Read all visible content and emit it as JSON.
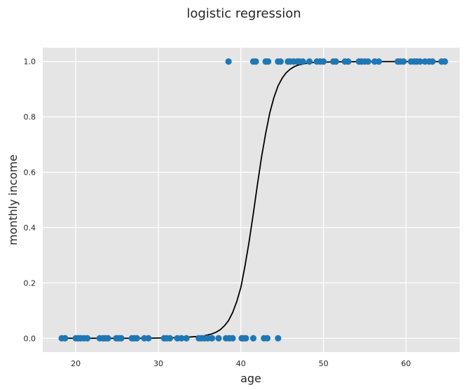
{
  "chart_data": {
    "type": "scatter",
    "title": "logistic regression",
    "xlabel": "age",
    "ylabel": "monthly income",
    "xlim": [
      16,
      66.5
    ],
    "ylim": [
      -0.05,
      1.05
    ],
    "xticks": [
      20,
      30,
      40,
      50,
      60
    ],
    "yticks": [
      0.0,
      0.2,
      0.4,
      0.6,
      0.8,
      1.0
    ],
    "grid": true,
    "background_color": "#e5e5e5",
    "grid_color": "#ffffff",
    "point_color": "#1f77b4",
    "line_color": "#000000",
    "series": [
      {
        "type": "scatter",
        "points": [
          [
            18.3,
            0
          ],
          [
            18.7,
            0
          ],
          [
            20.0,
            0
          ],
          [
            20.3,
            0
          ],
          [
            20.6,
            0
          ],
          [
            21.0,
            0
          ],
          [
            21.4,
            0
          ],
          [
            22.9,
            0
          ],
          [
            23.3,
            0
          ],
          [
            23.6,
            0
          ],
          [
            23.9,
            0
          ],
          [
            24.9,
            0
          ],
          [
            25.2,
            0
          ],
          [
            25.5,
            0
          ],
          [
            26.8,
            0
          ],
          [
            27.1,
            0
          ],
          [
            27.4,
            0
          ],
          [
            28.3,
            0
          ],
          [
            28.8,
            0
          ],
          [
            30.7,
            0
          ],
          [
            31.0,
            0
          ],
          [
            31.4,
            0
          ],
          [
            32.3,
            0
          ],
          [
            32.8,
            0
          ],
          [
            33.4,
            0
          ],
          [
            34.9,
            0
          ],
          [
            35.2,
            0
          ],
          [
            35.6,
            0
          ],
          [
            36.0,
            0
          ],
          [
            36.5,
            0
          ],
          [
            37.3,
            0
          ],
          [
            38.2,
            0
          ],
          [
            38.6,
            0
          ],
          [
            39.0,
            0
          ],
          [
            40.1,
            0
          ],
          [
            40.3,
            0
          ],
          [
            40.6,
            0
          ],
          [
            41.5,
            0
          ],
          [
            42.8,
            0
          ],
          [
            43.2,
            0
          ],
          [
            44.5,
            0
          ],
          [
            38.5,
            1
          ],
          [
            41.5,
            1
          ],
          [
            41.8,
            1
          ],
          [
            43.0,
            1
          ],
          [
            43.3,
            1
          ],
          [
            44.5,
            1
          ],
          [
            44.8,
            1
          ],
          [
            45.7,
            1
          ],
          [
            46.0,
            1
          ],
          [
            46.4,
            1
          ],
          [
            46.8,
            1
          ],
          [
            47.1,
            1
          ],
          [
            47.5,
            1
          ],
          [
            48.3,
            1
          ],
          [
            49.2,
            1
          ],
          [
            49.6,
            1
          ],
          [
            50.0,
            1
          ],
          [
            51.2,
            1
          ],
          [
            51.5,
            1
          ],
          [
            52.6,
            1
          ],
          [
            53.0,
            1
          ],
          [
            54.3,
            1
          ],
          [
            54.6,
            1
          ],
          [
            55.0,
            1
          ],
          [
            55.4,
            1
          ],
          [
            56.2,
            1
          ],
          [
            56.7,
            1
          ],
          [
            59.0,
            1
          ],
          [
            59.3,
            1
          ],
          [
            59.7,
            1
          ],
          [
            60.6,
            1
          ],
          [
            61.0,
            1
          ],
          [
            61.3,
            1
          ],
          [
            61.7,
            1
          ],
          [
            62.3,
            1
          ],
          [
            62.8,
            1
          ],
          [
            63.2,
            1
          ],
          [
            64.3,
            1
          ],
          [
            64.7,
            1
          ]
        ]
      },
      {
        "type": "line",
        "points": [
          [
            18.3,
            0.0
          ],
          [
            20,
            0.0
          ],
          [
            22,
            0.0
          ],
          [
            24,
            0.0
          ],
          [
            26,
            0.0
          ],
          [
            28,
            0.0
          ],
          [
            30,
            0.001
          ],
          [
            32,
            0.002
          ],
          [
            33,
            0.003
          ],
          [
            34,
            0.005
          ],
          [
            35,
            0.007
          ],
          [
            35.5,
            0.009
          ],
          [
            36,
            0.012
          ],
          [
            36.5,
            0.016
          ],
          [
            37,
            0.022
          ],
          [
            37.5,
            0.031
          ],
          [
            38,
            0.045
          ],
          [
            38.5,
            0.064
          ],
          [
            39,
            0.093
          ],
          [
            39.5,
            0.133
          ],
          [
            40,
            0.184
          ],
          [
            40.5,
            0.262
          ],
          [
            41,
            0.35
          ],
          [
            41.5,
            0.45
          ],
          [
            42,
            0.555
          ],
          [
            42.5,
            0.655
          ],
          [
            43,
            0.74
          ],
          [
            43.5,
            0.815
          ],
          [
            44,
            0.87
          ],
          [
            44.5,
            0.912
          ],
          [
            45,
            0.94
          ],
          [
            45.5,
            0.96
          ],
          [
            46,
            0.973
          ],
          [
            46.5,
            0.982
          ],
          [
            47,
            0.988
          ],
          [
            48,
            0.994
          ],
          [
            49,
            0.997
          ],
          [
            50,
            0.998
          ],
          [
            52,
            0.999
          ],
          [
            55,
            1.0
          ],
          [
            60,
            1.0
          ],
          [
            64.7,
            1.0
          ]
        ]
      }
    ]
  }
}
